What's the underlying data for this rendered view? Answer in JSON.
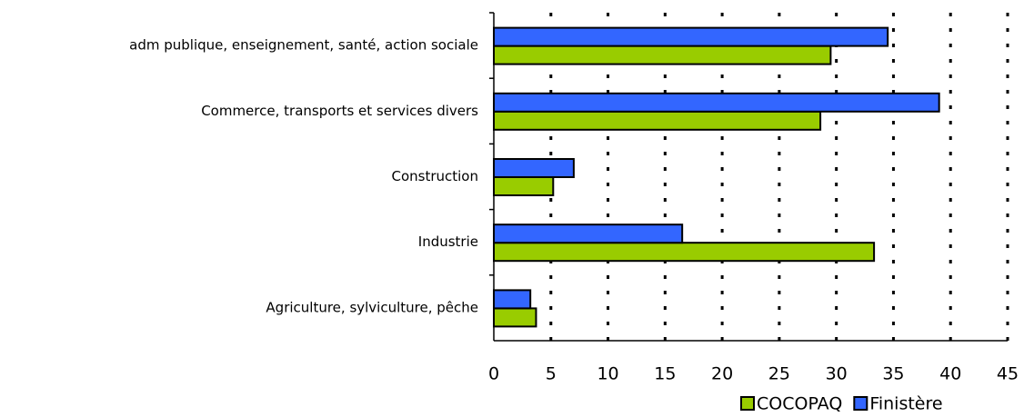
{
  "chart_data": {
    "type": "hbar",
    "categories": [
      "adm publique, enseignement, santé, action sociale",
      "Commerce, transports et services divers",
      "Construction",
      "Industrie",
      "Agriculture, sylviculture, pêche"
    ],
    "series": [
      {
        "name": "COCOPAQ",
        "color": "#99cc00",
        "values": [
          29.5,
          28.6,
          5.2,
          33.3,
          3.7
        ]
      },
      {
        "name": "Finistère",
        "color": "#3366ff",
        "values": [
          34.5,
          39.0,
          7.0,
          16.5,
          3.2
        ]
      }
    ],
    "xlim": [
      0,
      45
    ],
    "xticks": [
      0,
      5,
      10,
      15,
      20,
      25,
      30,
      35,
      40,
      45
    ],
    "grid": true
  }
}
